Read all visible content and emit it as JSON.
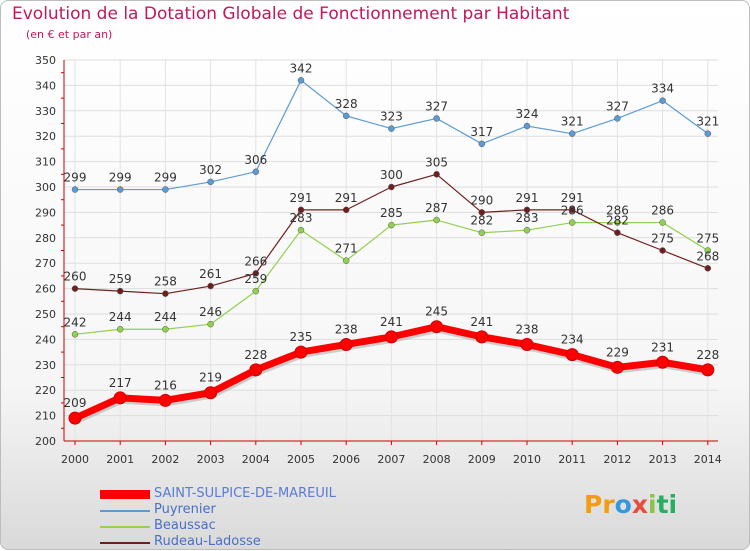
{
  "chart_data": {
    "type": "line",
    "title": "Evolution de la Dotation Globale de Fonctionnement par Habitant",
    "subtitle": "(en € et par an)",
    "xlabel": "",
    "ylabel": "",
    "ylim": [
      200,
      350
    ],
    "yticks": [
      200,
      210,
      220,
      230,
      240,
      250,
      260,
      270,
      280,
      290,
      300,
      310,
      320,
      330,
      340,
      350
    ],
    "categories": [
      "2000",
      "2001",
      "2002",
      "2003",
      "2004",
      "2005",
      "2006",
      "2007",
      "2008",
      "2009",
      "2010",
      "2011",
      "2012",
      "2013",
      "2014"
    ],
    "series": [
      {
        "name": "Puyrenier",
        "color": "#5b9bd5",
        "values": [
          299,
          299,
          299,
          302,
          306,
          342,
          328,
          323,
          327,
          317,
          324,
          321,
          327,
          334,
          321
        ]
      },
      {
        "name": "Beaussac",
        "color": "#92d050",
        "values": [
          242,
          244,
          244,
          246,
          259,
          283,
          271,
          285,
          287,
          282,
          283,
          286,
          286,
          286,
          275
        ]
      },
      {
        "name": "Rudeau-Ladosse",
        "color": "#6d1f1f",
        "values": [
          260,
          259,
          258,
          261,
          266,
          291,
          291,
          300,
          305,
          290,
          291,
          291,
          282,
          275,
          268
        ]
      },
      {
        "name": "SAINT-SULPICE-DE-MAREUIL",
        "color": "#ff0000",
        "values": [
          209,
          217,
          216,
          219,
          228,
          235,
          238,
          241,
          245,
          241,
          238,
          234,
          229,
          231,
          228
        ]
      }
    ],
    "legend": {
      "position": "bottom-left",
      "items": [
        {
          "name": "SAINT-SULPICE-DE-MAREUIL",
          "color": "#ff0000"
        },
        {
          "name": "Puyrenier",
          "color": "#5b9bd5"
        },
        {
          "name": "Beaussac",
          "color": "#92d050"
        },
        {
          "name": "Rudeau-Ladosse",
          "color": "#6d1f1f"
        }
      ]
    },
    "grid": true
  },
  "branding": {
    "logo_text": "Proxiti",
    "logo_letters": [
      "Pr",
      "o",
      "x",
      "i",
      "ti"
    ]
  }
}
